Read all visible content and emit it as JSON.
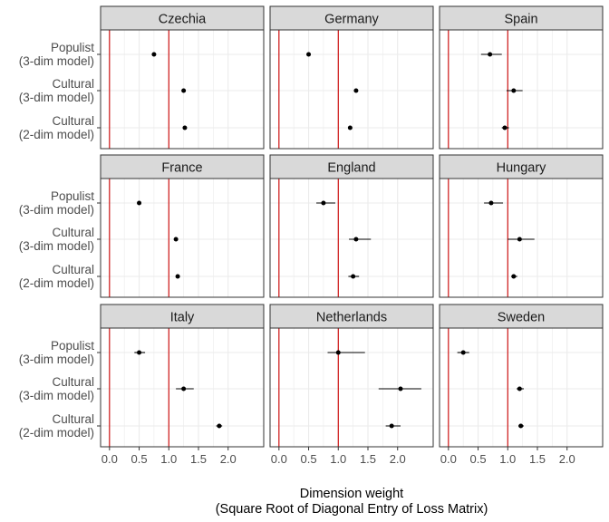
{
  "chart_data": {
    "type": "scatter",
    "subtype": "dot-and-whisker, faceted 3x3",
    "xlabel_line1": "Dimension weight",
    "xlabel_line2": "(Square Root of Diagonal Entry of Loss Matrix)",
    "ylabel": "",
    "categories": [
      {
        "line1": "Populist",
        "line2": "(3-dim model)"
      },
      {
        "line1": "Cultural",
        "line2": "(3-dim model)"
      },
      {
        "line1": "Cultural",
        "line2": "(2-dim model)"
      }
    ],
    "xticks": [
      {
        "value": 0,
        "label": "0.0"
      },
      {
        "value": 0.5,
        "label": "0.5"
      },
      {
        "value": 1,
        "label": "1.0"
      },
      {
        "value": 1.5,
        "label": "1.5"
      },
      {
        "value": 2,
        "label": "2.0"
      }
    ],
    "xlim": [
      -0.15,
      2.6
    ],
    "reference_lines": [
      0,
      1
    ],
    "grid": true,
    "colors": {
      "reference_line": "#cc0000",
      "point": "#000000",
      "strip_fill": "#d9d9d9",
      "panel_border": "#333333",
      "grid": "#ebebeb"
    },
    "panels": [
      {
        "name": "Czechia",
        "points": [
          {
            "estimate": 0.75,
            "lower": 0.72,
            "upper": 0.78
          },
          {
            "estimate": 1.25,
            "lower": 1.23,
            "upper": 1.27
          },
          {
            "estimate": 1.27,
            "lower": 1.24,
            "upper": 1.3
          }
        ]
      },
      {
        "name": "Germany",
        "points": [
          {
            "estimate": 0.5,
            "lower": 0.48,
            "upper": 0.52
          },
          {
            "estimate": 1.3,
            "lower": 1.27,
            "upper": 1.33
          },
          {
            "estimate": 1.2,
            "lower": 1.17,
            "upper": 1.23
          }
        ]
      },
      {
        "name": "Spain",
        "points": [
          {
            "estimate": 0.7,
            "lower": 0.55,
            "upper": 0.9
          },
          {
            "estimate": 1.1,
            "lower": 0.98,
            "upper": 1.25
          },
          {
            "estimate": 0.95,
            "lower": 0.9,
            "upper": 1.02
          }
        ]
      },
      {
        "name": "France",
        "points": [
          {
            "estimate": 0.5,
            "lower": 0.48,
            "upper": 0.53
          },
          {
            "estimate": 1.12,
            "lower": 1.1,
            "upper": 1.14
          },
          {
            "estimate": 1.15,
            "lower": 1.12,
            "upper": 1.18
          }
        ]
      },
      {
        "name": "England",
        "points": [
          {
            "estimate": 0.75,
            "lower": 0.63,
            "upper": 0.95
          },
          {
            "estimate": 1.3,
            "lower": 1.18,
            "upper": 1.55
          },
          {
            "estimate": 1.25,
            "lower": 1.17,
            "upper": 1.35
          }
        ]
      },
      {
        "name": "Hungary",
        "points": [
          {
            "estimate": 0.72,
            "lower": 0.6,
            "upper": 0.92
          },
          {
            "estimate": 1.2,
            "lower": 1.0,
            "upper": 1.45
          },
          {
            "estimate": 1.1,
            "lower": 1.06,
            "upper": 1.16
          }
        ]
      },
      {
        "name": "Italy",
        "points": [
          {
            "estimate": 0.5,
            "lower": 0.42,
            "upper": 0.6
          },
          {
            "estimate": 1.25,
            "lower": 1.12,
            "upper": 1.42
          },
          {
            "estimate": 1.85,
            "lower": 1.8,
            "upper": 1.9
          }
        ]
      },
      {
        "name": "Netherlands",
        "points": [
          {
            "estimate": 1.0,
            "lower": 0.82,
            "upper": 1.45
          },
          {
            "estimate": 2.05,
            "lower": 1.68,
            "upper": 2.4
          },
          {
            "estimate": 1.9,
            "lower": 1.8,
            "upper": 2.05
          }
        ]
      },
      {
        "name": "Sweden",
        "points": [
          {
            "estimate": 0.25,
            "lower": 0.15,
            "upper": 0.35
          },
          {
            "estimate": 1.2,
            "lower": 1.15,
            "upper": 1.27
          },
          {
            "estimate": 1.22,
            "lower": 1.18,
            "upper": 1.27
          }
        ]
      }
    ]
  }
}
